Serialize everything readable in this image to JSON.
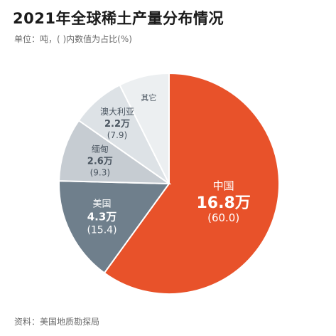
{
  "title": "2021年全球稀土产量分布情况",
  "subtitle": "单位：吨，( )内数值为占比(%)",
  "source": "资料：美国地质勘探局",
  "chart_data": {
    "type": "pie",
    "slices": [
      {
        "name": "中国",
        "value_label": "16.8万",
        "pct": 60.0,
        "pct_label": "(60.0)",
        "color": "#e8522a",
        "text_color": "#ffffff"
      },
      {
        "name": "美国",
        "value_label": "4.3万",
        "pct": 15.4,
        "pct_label": "(15.4)",
        "color": "#6f7f8c",
        "text_color": "#ffffff"
      },
      {
        "name": "缅甸",
        "value_label": "2.6万",
        "pct": 9.3,
        "pct_label": "(9.3)",
        "color": "#c6ccd2",
        "text_color": "#4a5560"
      },
      {
        "name": "澳大利亚",
        "value_label": "2.2万",
        "pct": 7.9,
        "pct_label": "(7.9)",
        "color": "#dde2e6",
        "text_color": "#4a5560"
      },
      {
        "name": "其它",
        "value_label": "",
        "pct": 7.4,
        "pct_label": "",
        "color": "#eceff1",
        "text_color": "#4a5560"
      }
    ]
  }
}
